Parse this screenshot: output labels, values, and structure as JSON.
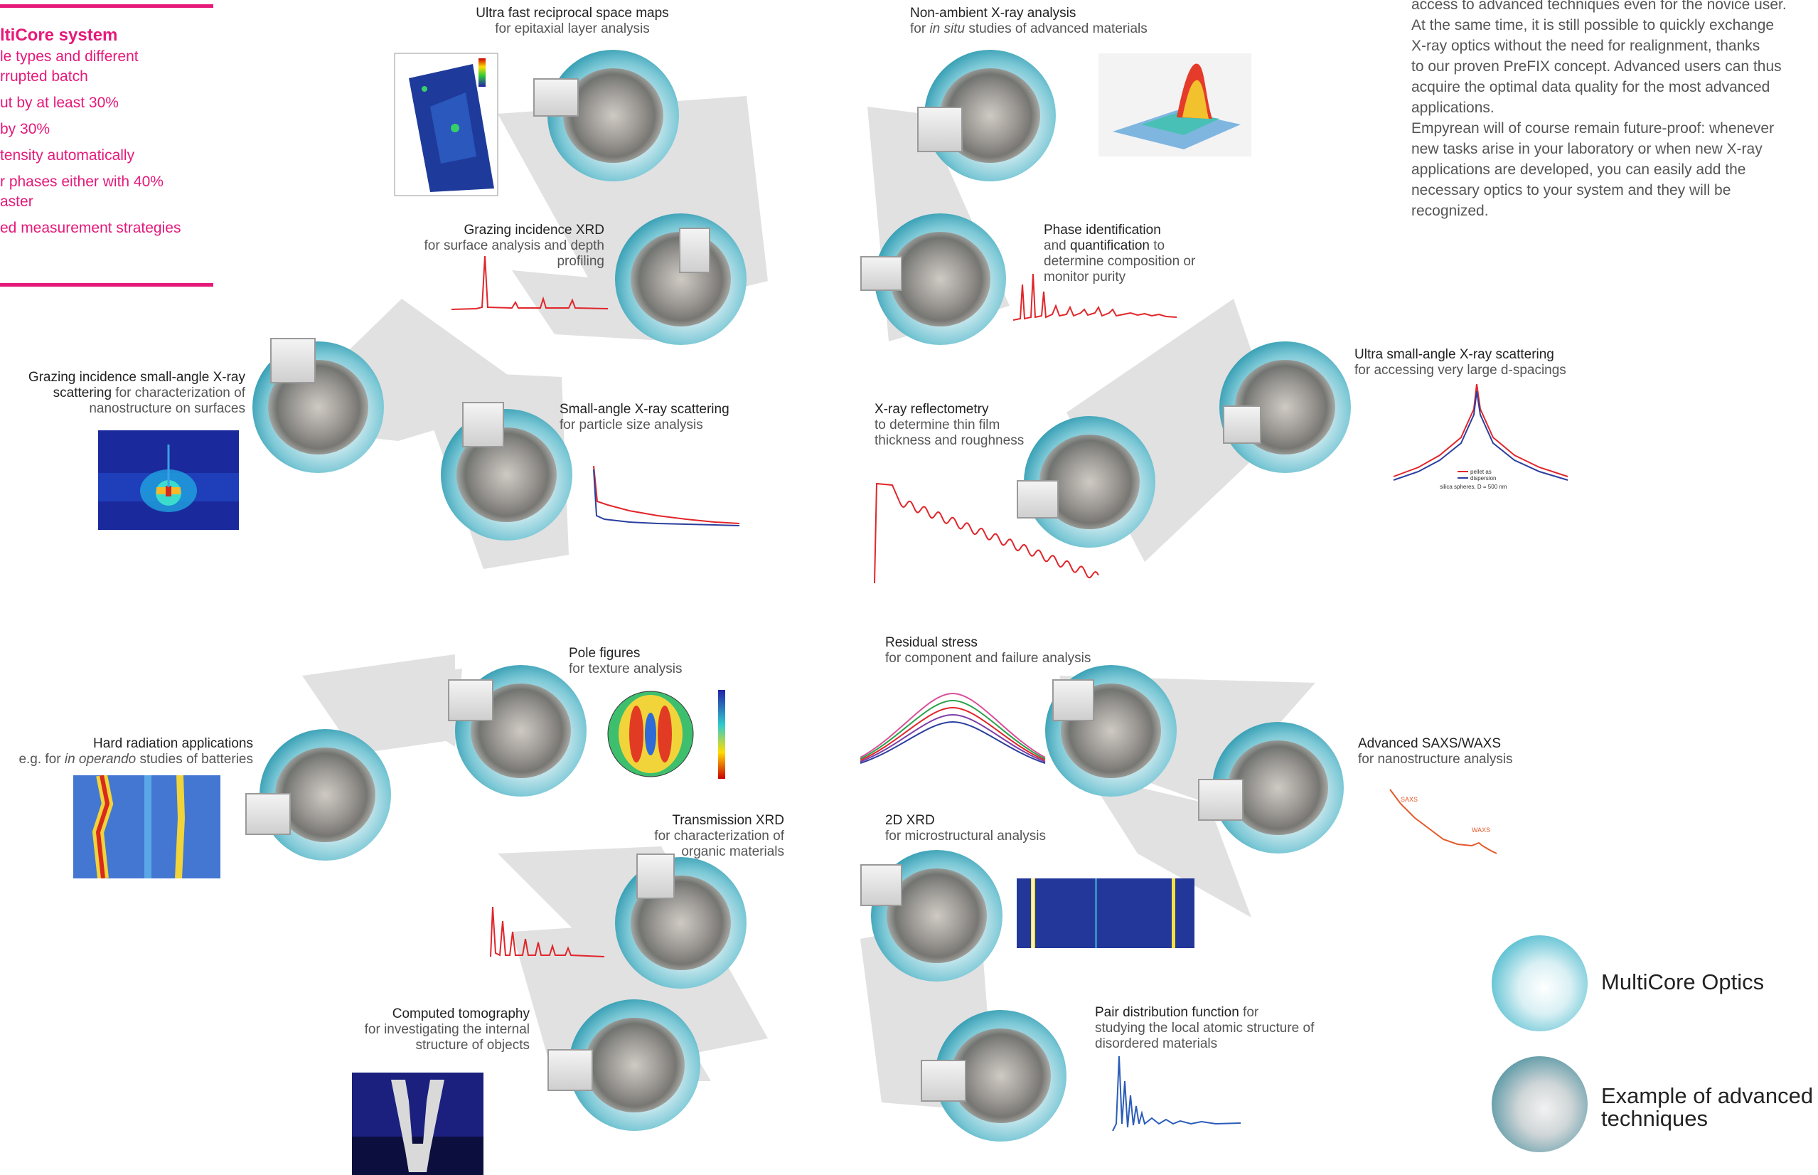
{
  "left_panel": {
    "title": "ltiCore system",
    "items": [
      "le types and different",
      "rrupted batch",
      "ut by at least 30%",
      "by 30%",
      "tensity automatically",
      "r phases either with 40%",
      "aster",
      "ed measurement strategies"
    ]
  },
  "intro_text": [
    "access to advanced techniques even for the novice user.",
    "At the same time, it is still possible to quickly exchange",
    "X-ray optics without the need for realignment, thanks",
    "to our proven PreFIX concept. Advanced users can thus",
    "acquire the optimal data quality for the most advanced",
    "applications.",
    "Empyrean will of course remain future-proof: whenever",
    "new tasks arise in your laboratory or when new X-ray",
    "applications are developed, you can easily add the",
    "necessary optics to your system and they will be",
    "recognized."
  ],
  "techniques": {
    "rsm": {
      "title": "Ultra fast reciprocal space maps",
      "desc": "for epitaxial layer analysis"
    },
    "nonambient": {
      "title": "Non-ambient X-ray analysis",
      "desc_pre": "for ",
      "desc_em": "in situ",
      "desc_post": " studies of advanced materials"
    },
    "gixrd": {
      "title": "Grazing incidence XRD",
      "desc": [
        "for surface analysis and depth",
        "profiling"
      ]
    },
    "phase": {
      "title": "Phase identification",
      "mid": "and ",
      "title2": "quantification",
      "desc": [
        " to",
        "determine composition or",
        "monitor purity"
      ]
    },
    "gisaxs": {
      "title": "Grazing incidence small-angle X-ray",
      "title2": "scattering",
      "desc": [
        " for characterization of",
        "nanostructure on surfaces"
      ]
    },
    "saxs": {
      "title": "Small-angle X-ray scattering",
      "desc": "for particle size analysis"
    },
    "xrr": {
      "title": "X-ray reflectometry",
      "desc": [
        "to determine thin film",
        "thickness and roughness"
      ]
    },
    "usaxs": {
      "title": "Ultra small-angle X-ray scattering",
      "desc": "for accessing very large d-spacings",
      "legend": [
        "pellet as",
        "dispersion"
      ],
      "caption": "silica spheres, D = 500 nm"
    },
    "pole": {
      "title": "Pole figures",
      "desc": "for texture analysis"
    },
    "residual": {
      "title": "Residual stress",
      "desc": "for component and failure analysis"
    },
    "hard": {
      "title": "Hard radiation applications",
      "desc_pre": "e.g. for ",
      "desc_em": "in operando",
      "desc_post": " studies of batteries"
    },
    "saxswaxs": {
      "title": "Advanced SAXS/WAXS",
      "desc": "for nanostructure analysis",
      "tag1": "SAXS",
      "tag2": "WAXS"
    },
    "transmission": {
      "title": "Transmission XRD",
      "desc": [
        "for characterization of",
        "organic materials"
      ]
    },
    "xrd2d": {
      "title": "2D XRD",
      "desc": "for microstructural analysis"
    },
    "ct": {
      "title": "Computed tomography",
      "desc": [
        "for investigating the internal",
        "structure of objects"
      ]
    },
    "pdf": {
      "title": "Pair distribution function",
      "desc": [
        " for",
        "studying the local atomic structure of",
        "disordered materials"
      ]
    }
  },
  "legend": {
    "multicore": "MultiCore Optics",
    "advanced": [
      "Example of advanced",
      "techniques"
    ]
  },
  "colors": {
    "accent": "#e5197a",
    "teal": "#1c8ea6",
    "sector_gray": "#dcdcdc",
    "trace_red": "#e0262b",
    "trace_blue": "#2b3f9e"
  }
}
